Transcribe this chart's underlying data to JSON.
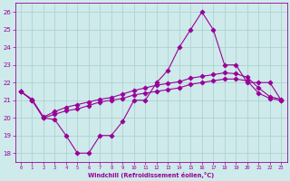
{
  "xlabel": "Windchill (Refroidissement éolien,°C)",
  "x": [
    0,
    1,
    2,
    3,
    4,
    5,
    6,
    7,
    8,
    9,
    10,
    11,
    12,
    13,
    14,
    15,
    16,
    17,
    18,
    19,
    20,
    21,
    22,
    23
  ],
  "line1": [
    21.5,
    21.0,
    20.0,
    19.9,
    19.0,
    18.0,
    18.0,
    19.0,
    19.0,
    19.8,
    21.0,
    21.0,
    22.0,
    22.7,
    24.0,
    25.0,
    26.0,
    25.0,
    23.0,
    23.0,
    22.0,
    22.0,
    22.0,
    21.0
  ],
  "line2": [
    21.5,
    21.0,
    20.0,
    20.2,
    20.4,
    20.5,
    20.7,
    20.9,
    21.0,
    21.1,
    21.3,
    21.4,
    21.5,
    21.6,
    21.7,
    21.9,
    22.0,
    22.1,
    22.2,
    22.2,
    22.1,
    21.4,
    21.1,
    21.0
  ],
  "line3": [
    21.5,
    21.05,
    20.05,
    20.35,
    20.6,
    20.75,
    20.9,
    21.05,
    21.15,
    21.35,
    21.55,
    21.7,
    21.85,
    21.95,
    22.05,
    22.25,
    22.35,
    22.45,
    22.55,
    22.5,
    22.3,
    21.7,
    21.2,
    21.05
  ],
  "color": "#990099",
  "bg_color": "#ceeaea",
  "grid_color": "#aacece",
  "ylim": [
    17.5,
    26.5
  ],
  "xlim": [
    -0.5,
    23.5
  ],
  "yticks": [
    18,
    19,
    20,
    21,
    22,
    23,
    24,
    25,
    26
  ],
  "xticks": [
    0,
    1,
    2,
    3,
    4,
    5,
    6,
    7,
    8,
    9,
    10,
    11,
    12,
    13,
    14,
    15,
    16,
    17,
    18,
    19,
    20,
    21,
    22,
    23
  ]
}
